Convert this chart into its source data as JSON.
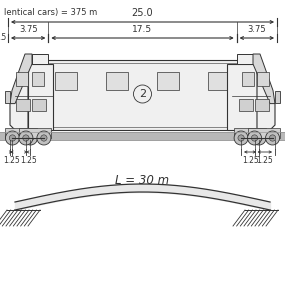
{
  "title_text": "lentical cars) = 375 m",
  "dim_25": "25.0",
  "dim_375_left": "3.75",
  "dim_175": "17.5",
  "dim_375_right": "3.75",
  "dim_axle": "1.25",
  "span_label": "L = 30 m",
  "bg_color": "#ffffff",
  "lc": "#333333",
  "tc": "#f0f0f0",
  "dc": "#d0d0d0",
  "rc": "#c0c0c0",
  "gray_light": "#e8e8e8",
  "gray_med": "#b8b8b8"
}
